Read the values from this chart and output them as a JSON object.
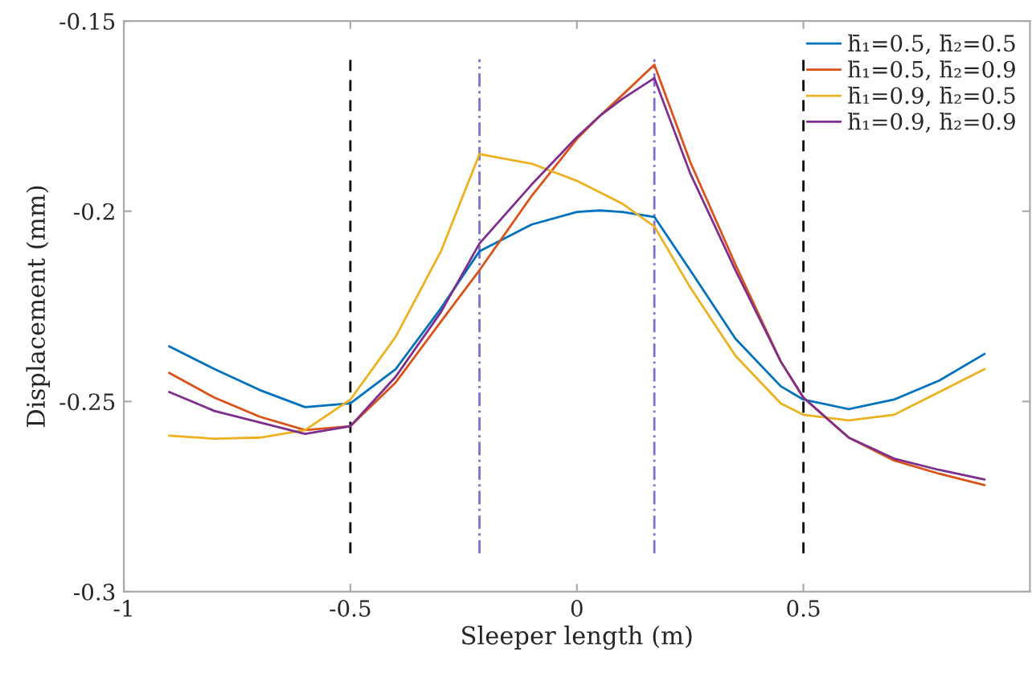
{
  "chart_data": {
    "type": "line",
    "xlabel": "Sleeper length (m)",
    "ylabel": "Displacement (mm)",
    "x": [
      -0.9,
      -0.8,
      -0.7,
      -0.6,
      -0.5,
      -0.4,
      -0.3,
      -0.215,
      -0.1,
      0,
      0.05,
      0.1,
      0.171,
      0.25,
      0.35,
      0.45,
      0.5,
      0.6,
      0.7,
      0.8,
      0.9
    ],
    "series": [
      {
        "name": "h̄₁=0.5, h̄₂=0.5",
        "color": "#0072bd",
        "values": [
          -0.2355,
          -0.2415,
          -0.247,
          -0.2515,
          -0.2505,
          -0.2415,
          -0.2255,
          -0.2105,
          -0.2035,
          -0.2002,
          -0.1998,
          -0.2002,
          -0.2015,
          -0.2155,
          -0.2335,
          -0.246,
          -0.2495,
          -0.252,
          -0.2495,
          -0.2445,
          -0.2375
        ]
      },
      {
        "name": "h̄₁=0.5, h̄₂=0.9",
        "color": "#d95319",
        "values": [
          -0.2425,
          -0.249,
          -0.254,
          -0.2575,
          -0.2565,
          -0.245,
          -0.229,
          -0.2155,
          -0.196,
          -0.181,
          -0.175,
          -0.1695,
          -0.1615,
          -0.187,
          -0.214,
          -0.2395,
          -0.249,
          -0.2595,
          -0.2655,
          -0.269,
          -0.272
        ]
      },
      {
        "name": "h̄₁=0.9, h̄₂=0.5",
        "color": "#edb120",
        "values": [
          -0.259,
          -0.2598,
          -0.2595,
          -0.2575,
          -0.2495,
          -0.233,
          -0.2105,
          -0.185,
          -0.1875,
          -0.192,
          -0.195,
          -0.198,
          -0.204,
          -0.22,
          -0.238,
          -0.2505,
          -0.2535,
          -0.255,
          -0.2535,
          -0.2475,
          -0.2415
        ]
      },
      {
        "name": "h̄₁=0.9, h̄₂=0.9",
        "color": "#7e2f8e",
        "values": [
          -0.2475,
          -0.2525,
          -0.2555,
          -0.2585,
          -0.2565,
          -0.2435,
          -0.2265,
          -0.2085,
          -0.193,
          -0.1805,
          -0.175,
          -0.1705,
          -0.165,
          -0.19,
          -0.2155,
          -0.2395,
          -0.249,
          -0.2595,
          -0.265,
          -0.268,
          -0.2705
        ]
      }
    ],
    "xlim": [
      -1,
      1
    ],
    "ylim": [
      -0.3,
      -0.15
    ],
    "xticks": [
      -1,
      -0.5,
      0,
      0.5
    ],
    "yticks": [
      -0.3,
      -0.25,
      -0.2,
      -0.15
    ],
    "ref_lines": [
      {
        "axis": "x",
        "value": -0.5,
        "color": "#000000",
        "line_style": "dashed"
      },
      {
        "axis": "x",
        "value": 0.5,
        "color": "#000000",
        "line_style": "dashed"
      },
      {
        "axis": "x",
        "value": -0.215,
        "color": "#7e6fc8",
        "line_style": "dashdot"
      },
      {
        "axis": "x",
        "value": 0.171,
        "color": "#7e6fc8",
        "line_style": "dashdot"
      }
    ],
    "grid": false,
    "legend": "top right",
    "marker": "none",
    "line_style": "solid"
  }
}
